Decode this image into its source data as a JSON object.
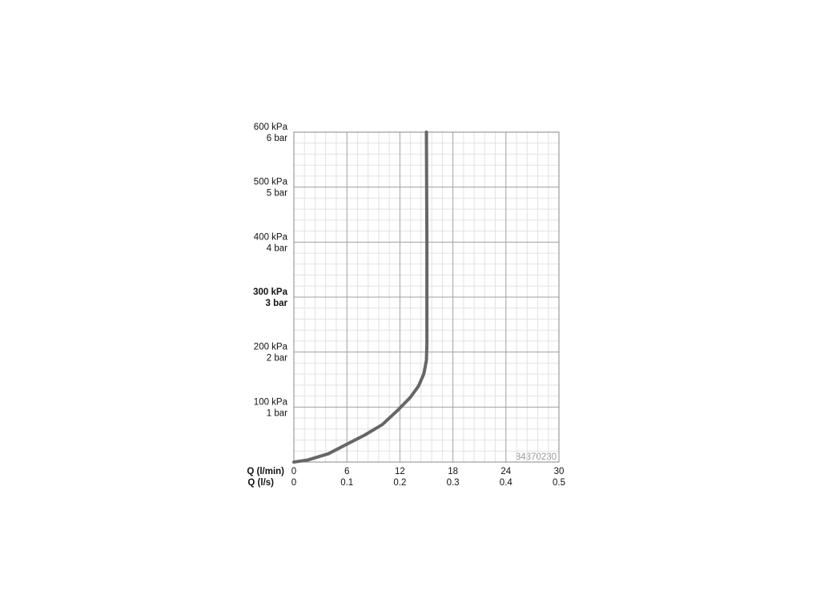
{
  "chart_data": {
    "type": "line",
    "x_label": "Q (l/min)",
    "x2_label": "Q (l/s)",
    "annotation": "84370230",
    "x": [
      0,
      1.6,
      3.9,
      5.7,
      8,
      10,
      11.8,
      13.2,
      14.1,
      14.7,
      15,
      15.05,
      15.05,
      15
    ],
    "series": [
      {
        "color": "#666666",
        "values": [
          0,
          4,
          15,
          30,
          49,
          68,
          95,
          118,
          138,
          160,
          185,
          214,
          400,
          600
        ]
      }
    ],
    "xlim": [
      0,
      30
    ],
    "xticks": [
      0,
      6,
      12,
      18,
      24,
      30
    ],
    "x2lim": [
      0,
      0.5
    ],
    "x2ticks": [
      0,
      0.1,
      0.2,
      0.3,
      0.4,
      0.5
    ],
    "ylim": [
      0,
      600
    ],
    "yticks": [
      {
        "value": 100,
        "label": "100 kPa"
      },
      {
        "value": 200,
        "label": "200 kPa"
      },
      {
        "value": 300,
        "label": "300 kPa",
        "bold": true
      },
      {
        "value": 400,
        "label": "400 kPa"
      },
      {
        "value": 500,
        "label": "500 kPa"
      },
      {
        "value": 600,
        "label": "600 kPa"
      }
    ],
    "y2lim": [
      0,
      6
    ],
    "y2ticks": [
      {
        "value": 1,
        "label": "1 bar"
      },
      {
        "value": 2,
        "label": "2 bar"
      },
      {
        "value": 3,
        "label": "3 bar",
        "bold": true
      },
      {
        "value": 4,
        "label": "4 bar"
      },
      {
        "value": 5,
        "label": "5 bar"
      },
      {
        "value": 6,
        "label": "6 bar"
      }
    ],
    "grid": true,
    "minor_grid_divisions": 5
  }
}
